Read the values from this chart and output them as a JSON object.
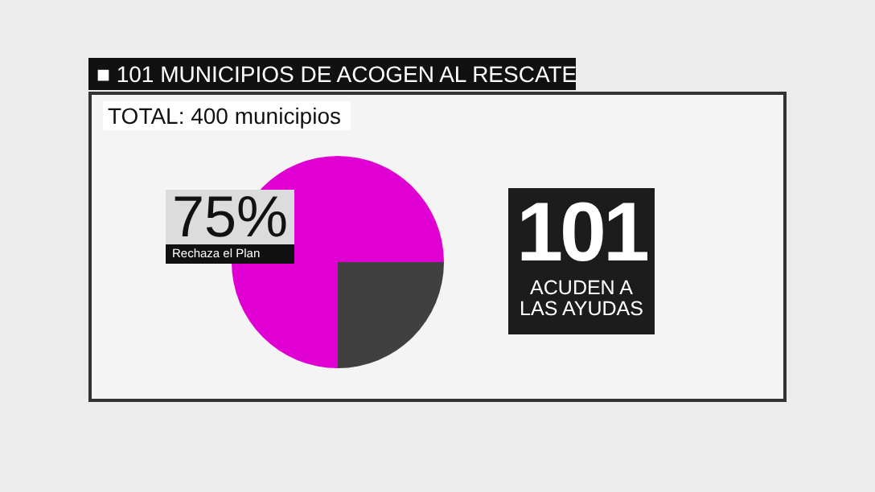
{
  "chart_data": {
    "type": "pie",
    "title": "■ 101 MUNICIPIOS DE ACOGEN AL RESCATE",
    "subtitle": "TOTAL: 400 municipios",
    "categories": [
      "Rechaza el Plan",
      null
    ],
    "values": [
      75,
      25
    ],
    "colors": [
      "#e000d4",
      "#404040"
    ],
    "value_labels": [
      "75%",
      null
    ],
    "annotations": [
      "101",
      "ACUDEN A LAS AYUDAS"
    ]
  }
}
